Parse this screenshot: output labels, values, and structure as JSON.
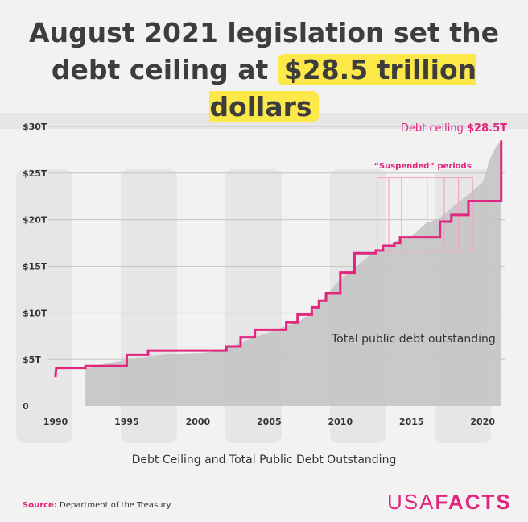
{
  "headline": {
    "line1": "August 2021 legislation set the",
    "line2_prefix": "debt ceiling at ",
    "line2_highlight": "$28.5 trillion dollars"
  },
  "subtitle": "Debt Ceiling and Total Public Debt Outstanding",
  "source": {
    "label": "Source:",
    "text": "Department of the Treasury"
  },
  "logo": {
    "part1": "USA",
    "part2": "FACTS"
  },
  "colors": {
    "ceiling": "#e0267e",
    "ceiling_suspended": "#f4a2c8",
    "debt_area": "#c4c4c4",
    "highlight": "#fde84a",
    "title": "#3d3d3d"
  },
  "chart_data": {
    "type": "area",
    "title": "Debt Ceiling and Total Public Debt Outstanding",
    "xlim": [
      1990,
      2021.6
    ],
    "ylim": [
      0,
      30
    ],
    "x_ticks": [
      1990,
      1995,
      2000,
      2005,
      2010,
      2015,
      2020
    ],
    "y_ticks": [
      0,
      5,
      10,
      15,
      20,
      25,
      30
    ],
    "y_tick_labels": [
      "0",
      "$5T",
      "$10T",
      "$15T",
      "$20T",
      "$25T",
      "$30T"
    ],
    "annotations": {
      "ceiling_label": "Debt ceiling ",
      "ceiling_value": "$28.5T",
      "suspended_label": "“Suspended” periods",
      "debt_label": "Total public debt outstanding"
    },
    "series": [
      {
        "name": "Debt ceiling",
        "style": "step",
        "points": [
          [
            1990.0,
            3.1
          ],
          [
            1990.0,
            3.3
          ],
          [
            1990.05,
            4.1
          ],
          [
            1992.1,
            4.1
          ],
          [
            1992.1,
            4.3
          ],
          [
            1995.0,
            4.3
          ],
          [
            1995.0,
            5.5
          ],
          [
            1996.5,
            5.5
          ],
          [
            1996.5,
            5.95
          ],
          [
            2002.0,
            5.95
          ],
          [
            2002.0,
            6.4
          ],
          [
            2003.0,
            6.4
          ],
          [
            2003.0,
            7.38
          ],
          [
            2004.0,
            7.38
          ],
          [
            2004.0,
            8.18
          ],
          [
            2005.0,
            8.18
          ],
          [
            2005.0,
            8.18
          ],
          [
            2006.2,
            8.18
          ],
          [
            2006.2,
            8.97
          ],
          [
            2007.0,
            8.97
          ],
          [
            2007.0,
            9.82
          ],
          [
            2008.0,
            9.82
          ],
          [
            2008.0,
            10.6
          ],
          [
            2008.5,
            10.6
          ],
          [
            2008.5,
            11.3
          ],
          [
            2009.0,
            11.3
          ],
          [
            2009.0,
            12.1
          ],
          [
            2010.0,
            12.1
          ],
          [
            2010.0,
            14.3
          ],
          [
            2011.0,
            14.3
          ],
          [
            2011.0,
            16.4
          ],
          [
            2012.5,
            16.4
          ],
          [
            2012.5,
            16.7
          ],
          [
            2013.0,
            16.7
          ],
          [
            2013.0,
            17.2
          ],
          [
            2013.8,
            17.2
          ],
          [
            2013.8,
            17.5
          ],
          [
            2014.2,
            17.5
          ],
          [
            2014.2,
            18.1
          ],
          [
            2015.0,
            18.1
          ],
          [
            2015.0,
            18.1
          ],
          [
            2017.0,
            18.1
          ],
          [
            2017.0,
            19.8
          ],
          [
            2017.8,
            19.8
          ],
          [
            2017.8,
            20.5
          ],
          [
            2019.0,
            20.5
          ],
          [
            2019.0,
            22.0
          ],
          [
            2021.3,
            22.0
          ],
          [
            2021.3,
            28.5
          ]
        ]
      },
      {
        "name": "Total public debt outstanding",
        "style": "area",
        "points": [
          [
            1992.1,
            4.0
          ],
          [
            1993.0,
            4.4
          ],
          [
            1994.0,
            4.7
          ],
          [
            1995.0,
            4.95
          ],
          [
            1996.0,
            5.2
          ],
          [
            1997.0,
            5.4
          ],
          [
            1998.0,
            5.55
          ],
          [
            1999.0,
            5.65
          ],
          [
            2000.0,
            5.7
          ],
          [
            2001.0,
            5.8
          ],
          [
            2002.0,
            6.2
          ],
          [
            2003.0,
            6.8
          ],
          [
            2004.0,
            7.4
          ],
          [
            2005.0,
            7.9
          ],
          [
            2006.0,
            8.5
          ],
          [
            2007.0,
            9.0
          ],
          [
            2008.0,
            10.0
          ],
          [
            2009.0,
            11.9
          ],
          [
            2010.0,
            13.6
          ],
          [
            2011.0,
            14.8
          ],
          [
            2012.0,
            16.1
          ],
          [
            2013.0,
            16.8
          ],
          [
            2014.0,
            17.8
          ],
          [
            2015.0,
            18.2
          ],
          [
            2016.0,
            19.6
          ],
          [
            2017.0,
            20.2
          ],
          [
            2018.0,
            21.5
          ],
          [
            2019.0,
            22.7
          ],
          [
            2020.0,
            24.0
          ],
          [
            2020.5,
            26.5
          ],
          [
            2021.0,
            28.0
          ],
          [
            2021.3,
            28.4
          ]
        ]
      }
    ],
    "suspended_periods": [
      [
        2012.6,
        2013.4
      ],
      [
        2013.4,
        2014.3
      ],
      [
        2014.3,
        2016.1
      ],
      [
        2016.1,
        2017.3
      ],
      [
        2017.3,
        2018.3
      ],
      [
        2018.3,
        2019.3
      ]
    ],
    "suspended_y": [
      16.6,
      24.5
    ]
  }
}
